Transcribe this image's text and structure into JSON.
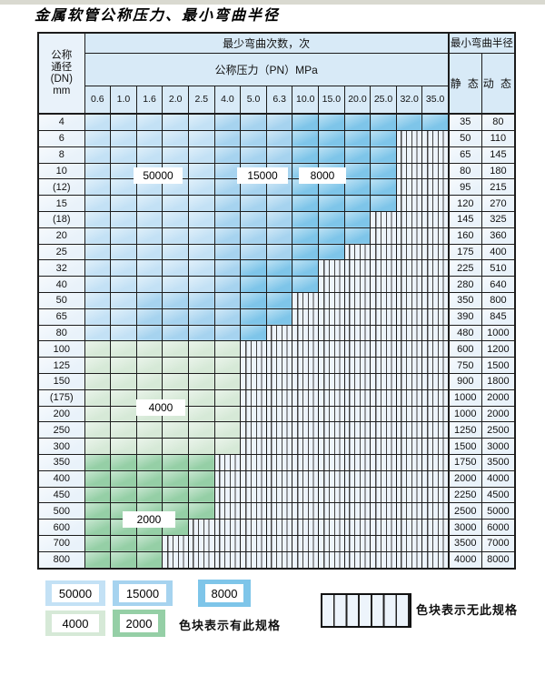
{
  "title": "金属软管公称压力、最小弯曲半径",
  "table": {
    "header": {
      "dn_label_lines": [
        "公称",
        "通径",
        "(DN)",
        "mm"
      ],
      "bend_cycles_label": "最少弯曲次数，次",
      "pressure_label": "公称压力（PN）MPa",
      "bend_radius_label": "最小弯曲半径",
      "static_label": "静 态",
      "dynamic_label": "动 态",
      "pressures": [
        "0.6",
        "1.0",
        "1.6",
        "2.0",
        "2.5",
        "4.0",
        "5.0",
        "6.3",
        "10.0",
        "15.0",
        "20.0",
        "25.0",
        "32.0",
        "35.0"
      ]
    },
    "zone_legend_names": {
      "A": "50000",
      "B": "15000",
      "C": "8000",
      "D": "4000",
      "E": "2000",
      "X": "no-spec"
    },
    "zone_labels": {
      "z50000": "50000",
      "z15000": "15000",
      "z8000": "8000",
      "z4000": "4000",
      "z2000": "2000"
    },
    "rows": [
      {
        "dn": "4",
        "cells": "AAAAABBBCCCCCC",
        "static": "35",
        "dynamic": "80"
      },
      {
        "dn": "6",
        "cells": "AAAAABBBCCCCXX",
        "static": "50",
        "dynamic": "110"
      },
      {
        "dn": "8",
        "cells": "AAAAABBBCCCCXX",
        "static": "65",
        "dynamic": "145"
      },
      {
        "dn": "10",
        "cells": "AAAAABBBCCCCXX",
        "static": "80",
        "dynamic": "180"
      },
      {
        "dn": "(12)",
        "cells": "AAAAABBBCCCCXX",
        "static": "95",
        "dynamic": "215"
      },
      {
        "dn": "15",
        "cells": "AAAAABBBCCCCXX",
        "static": "120",
        "dynamic": "270"
      },
      {
        "dn": "(18)",
        "cells": "AAAAABBBCCCXXX",
        "static": "145",
        "dynamic": "325"
      },
      {
        "dn": "20",
        "cells": "AAAAABBBCCCXXX",
        "static": "160",
        "dynamic": "360"
      },
      {
        "dn": "25",
        "cells": "AAAAABBBCCXXXX",
        "static": "175",
        "dynamic": "400"
      },
      {
        "dn": "32",
        "cells": "AAAAABCCCXXXXX",
        "static": "225",
        "dynamic": "510"
      },
      {
        "dn": "40",
        "cells": "AAAAABCCCXXXXX",
        "static": "280",
        "dynamic": "640"
      },
      {
        "dn": "50",
        "cells": "AABBBBCCXXXXXX",
        "static": "350",
        "dynamic": "800"
      },
      {
        "dn": "65",
        "cells": "AABBBBCCXXXXXX",
        "static": "390",
        "dynamic": "845"
      },
      {
        "dn": "80",
        "cells": "AABBBBCXXXXXXX",
        "static": "480",
        "dynamic": "1000"
      },
      {
        "dn": "100",
        "cells": "DDDDDDXXXXXXXX",
        "static": "600",
        "dynamic": "1200"
      },
      {
        "dn": "125",
        "cells": "DDDDDDXXXXXXXX",
        "static": "750",
        "dynamic": "1500"
      },
      {
        "dn": "150",
        "cells": "DDDDDDXXXXXXXX",
        "static": "900",
        "dynamic": "1800"
      },
      {
        "dn": "(175)",
        "cells": "DDDDDDXXXXXXXX",
        "static": "1000",
        "dynamic": "2000"
      },
      {
        "dn": "200",
        "cells": "DDDDDDXXXXXXXX",
        "static": "1000",
        "dynamic": "2000"
      },
      {
        "dn": "250",
        "cells": "DDDDDDXXXXXXXX",
        "static": "1250",
        "dynamic": "2500"
      },
      {
        "dn": "300",
        "cells": "DDDDDDXXXXXXXX",
        "static": "1500",
        "dynamic": "3000"
      },
      {
        "dn": "350",
        "cells": "EEEEEXXXXXXXXX",
        "static": "1750",
        "dynamic": "3500"
      },
      {
        "dn": "400",
        "cells": "EEEEEXXXXXXXXX",
        "static": "2000",
        "dynamic": "4000"
      },
      {
        "dn": "450",
        "cells": "EEEEEXXXXXXXXX",
        "static": "2250",
        "dynamic": "4500"
      },
      {
        "dn": "500",
        "cells": "EEEEEXXXXXXXXX",
        "static": "2500",
        "dynamic": "5000"
      },
      {
        "dn": "600",
        "cells": "EEEEXXXXXXXXXX",
        "static": "3000",
        "dynamic": "6000"
      },
      {
        "dn": "700",
        "cells": "EEEXXXXXXXXXXX",
        "static": "3500",
        "dynamic": "7000"
      },
      {
        "dn": "800",
        "cells": "EEEXXXXXXXXXXX",
        "static": "4000",
        "dynamic": "8000"
      }
    ]
  },
  "legend": {
    "swatches": [
      {
        "label": "50000"
      },
      {
        "label": "15000"
      },
      {
        "label": "8000"
      },
      {
        "label": "4000"
      },
      {
        "label": "2000"
      }
    ],
    "has_spec_note": "色块表示有此规格",
    "no_spec_note": "色块表示无此规格"
  },
  "colors": {
    "zone_50000": "#c3e1f5",
    "zone_15000": "#a6d3ef",
    "zone_8000": "#7ec5e9",
    "zone_4000": "#d6e9d7",
    "zone_2000": "#95cfa6",
    "no_spec_bg": "#edf4fb",
    "header_bg": "#d8eaf7",
    "label_col_bg": "#e9f2fa",
    "grid_line": "#1c1c1c"
  }
}
